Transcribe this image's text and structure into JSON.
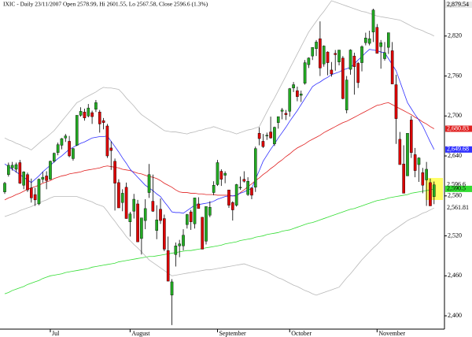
{
  "chart_data": {
    "type": "candlestick",
    "title": "IXIC - Daily 23/11/2007 Open 2578.99, Hi 2601.55, Lo 2567.58, Close 2596.6 (1.3%)",
    "categories": [
      null,
      null,
      null,
      null,
      null,
      null,
      null,
      null,
      null,
      null,
      null,
      null,
      "Jul",
      null,
      null,
      null,
      null,
      null,
      null,
      null,
      null,
      null,
      null,
      null,
      null,
      null,
      null,
      null,
      null,
      null,
      null,
      null,
      null,
      "August",
      null,
      null,
      null,
      null,
      null,
      null,
      null,
      null,
      null,
      null,
      null,
      null,
      null,
      null,
      null,
      null,
      null,
      null,
      null,
      null,
      null,
      null,
      "September",
      null,
      null,
      null,
      null,
      null,
      null,
      null,
      null,
      null,
      null,
      null,
      null,
      null,
      null,
      null,
      null,
      null,
      null,
      "October",
      null,
      null,
      null,
      null,
      null,
      null,
      null,
      null,
      null,
      null,
      null,
      null,
      null,
      null,
      null,
      null,
      null,
      null,
      null,
      null,
      null,
      null,
      "November",
      null,
      null,
      null,
      null,
      null,
      null,
      null,
      null,
      null,
      null,
      null,
      null,
      null,
      null,
      null
    ],
    "open": [
      2586,
      2612,
      2622,
      2620,
      2630,
      2596,
      2612,
      2592,
      2582,
      2568,
      2605,
      2610,
      2605,
      2632,
      2645,
      2656,
      2667,
      2662,
      2636,
      2656,
      2701,
      2706,
      2700,
      2705,
      2710,
      2706,
      2693,
      2685,
      2652,
      2632,
      2600,
      2570,
      2593,
      2541,
      2557,
      2568,
      2516,
      2543,
      2585,
      2572,
      2528,
      2560,
      2546,
      2498,
      2431,
      2492,
      2505,
      2505,
      2537,
      2556,
      2538,
      2568,
      2548,
      2512,
      2551,
      2585,
      2597,
      2617,
      2611,
      2589,
      2570,
      2566,
      2593,
      2605,
      2582,
      2592,
      2593,
      2674,
      2662,
      2670,
      2676,
      2658,
      2690,
      2707,
      2704,
      2707,
      2742,
      2738,
      2731,
      2749,
      2777,
      2790,
      2801,
      2816,
      2778,
      2796,
      2769,
      2794,
      2781,
      2787,
      2709,
      2770,
      2790,
      2779,
      2780,
      2810,
      2809,
      2826,
      2833,
      2804,
      2786,
      2803,
      2798,
      2747,
      2665,
      2628,
      2610,
      2694,
      2642,
      2627,
      2615,
      2604,
      2600,
      2578.99
    ],
    "high": [
      2601,
      2630,
      2631,
      2630,
      2634,
      2617,
      2615,
      2606,
      2592,
      2606,
      2616,
      2617,
      2633,
      2645,
      2660,
      2667,
      2673,
      2670,
      2652,
      2701,
      2713,
      2711,
      2718,
      2708,
      2724,
      2709,
      2697,
      2688,
      2662,
      2636,
      2605,
      2590,
      2600,
      2556,
      2583,
      2574,
      2547,
      2575,
      2628,
      2612,
      2566,
      2576,
      2552,
      2519,
      2455,
      2510,
      2514,
      2530,
      2553,
      2559,
      2577,
      2578,
      2548,
      2564,
      2572,
      2602,
      2634,
      2620,
      2617,
      2589,
      2572,
      2598,
      2609,
      2617,
      2608,
      2593,
      2654,
      2683,
      2673,
      2675,
      2699,
      2684,
      2697,
      2712,
      2709,
      2742,
      2751,
      2744,
      2738,
      2784,
      2788,
      2803,
      2814,
      2842,
      2806,
      2797,
      2781,
      2799,
      2799,
      2790,
      2760,
      2800,
      2795,
      2781,
      2806,
      2825,
      2828,
      2861,
      2838,
      2814,
      2811,
      2825,
      2811,
      2762,
      2676,
      2656,
      2674,
      2700,
      2652,
      2638,
      2622,
      2631,
      2606,
      2601.55
    ],
    "low": [
      2583,
      2609,
      2618,
      2615,
      2598,
      2590,
      2586,
      2570,
      2565,
      2566,
      2600,
      2590,
      2604,
      2630,
      2641,
      2650,
      2661,
      2638,
      2633,
      2655,
      2699,
      2693,
      2698,
      2688,
      2706,
      2675,
      2680,
      2637,
      2619,
      2558,
      2562,
      2557,
      2546,
      2519,
      2546,
      2511,
      2492,
      2530,
      2577,
      2556,
      2515,
      2538,
      2497,
      2452,
      2386,
      2474,
      2488,
      2498,
      2531,
      2529,
      2531,
      2561,
      2500,
      2507,
      2548,
      2581,
      2595,
      2595,
      2599,
      2562,
      2543,
      2564,
      2589,
      2600,
      2580,
      2575,
      2586,
      2656,
      2652,
      2664,
      2666,
      2655,
      2681,
      2695,
      2694,
      2699,
      2736,
      2722,
      2721,
      2747,
      2772,
      2784,
      2790,
      2760,
      2774,
      2761,
      2759,
      2768,
      2776,
      2725,
      2704,
      2762,
      2732,
      2742,
      2767,
      2806,
      2806,
      2811,
      2794,
      2771,
      2783,
      2793,
      2748,
      2658,
      2627,
      2584,
      2610,
      2637,
      2608,
      2601,
      2584,
      2565,
      2565,
      2567.58
    ],
    "close": [
      2599,
      2626,
      2626,
      2627,
      2599,
      2616,
      2589,
      2577,
      2574,
      2605,
      2608,
      2603,
      2632,
      2644,
      2657,
      2666,
      2670,
      2640,
      2651,
      2701,
      2707,
      2697,
      2712,
      2699,
      2720,
      2688,
      2690,
      2640,
      2648,
      2599,
      2562,
      2584,
      2546,
      2553,
      2575,
      2511,
      2547,
      2561,
      2612,
      2557,
      2544,
      2543,
      2500,
      2452,
      2451,
      2505,
      2508,
      2521,
      2552,
      2541,
      2577,
      2561,
      2500,
      2564,
      2563,
      2596,
      2630,
      2605,
      2614,
      2566,
      2559,
      2597,
      2593,
      2602,
      2602,
      2581,
      2651,
      2666,
      2654,
      2671,
      2667,
      2683,
      2699,
      2709,
      2702,
      2741,
      2747,
      2729,
      2733,
      2780,
      2787,
      2803,
      2811,
      2772,
      2805,
      2780,
      2763,
      2792,
      2799,
      2726,
      2754,
      2799,
      2774,
      2750,
      2804,
      2817,
      2816,
      2859,
      2794,
      2810,
      2795,
      2825,
      2748,
      2696,
      2627,
      2584,
      2674,
      2645,
      2618,
      2637,
      2596,
      2620,
      2565,
      2596.6
    ],
    "up_color": "#22aa22",
    "down_color": "#dd0000",
    "lines": [
      {
        "color": "#33dd33",
        "values": [
          2433,
          2435,
          2438,
          2440,
          2442,
          2444,
          2447,
          2449,
          2451,
          2453,
          2456,
          2458,
          2460,
          2461,
          2462,
          2463,
          2465,
          2466,
          2467,
          2468,
          2469,
          2470,
          2471,
          2473,
          2474,
          2475,
          2476,
          2477,
          2478,
          2479,
          2481,
          2482,
          2483,
          2484,
          2485,
          2486,
          2487,
          2488,
          2489,
          2489,
          2490,
          2491,
          2492,
          2493,
          2494,
          2495,
          2496,
          2497,
          2498,
          2498,
          2499,
          2500,
          2501,
          2502,
          2503,
          2504,
          2505,
          2506,
          2508,
          2509,
          2510,
          2511,
          2513,
          2514,
          2515,
          2516,
          2518,
          2519,
          2520,
          2522,
          2523,
          2524,
          2525,
          2527,
          2528,
          2529,
          2531,
          2533,
          2535,
          2537,
          2539,
          2540,
          2542,
          2544,
          2546,
          2548,
          2550,
          2552,
          2554,
          2556,
          2558,
          2560,
          2561,
          2563,
          2565,
          2567,
          2569,
          2571,
          2573,
          2574,
          2575,
          2577,
          2578,
          2579,
          2580,
          2581,
          2582,
          2584,
          2585,
          2586,
          2587,
          2588,
          2589,
          2590.5
        ]
      },
      {
        "color": "#e02020",
        "values": [
          2574,
          2577,
          2579,
          2582,
          2584,
          2587,
          2590,
          2592,
          2594,
          2596,
          2599,
          2601,
          2603,
          2606,
          2608,
          2610,
          2611,
          2613,
          2614,
          2615,
          2616,
          2618,
          2619,
          2620,
          2621,
          2622,
          2624,
          2625,
          2624,
          2623,
          2622,
          2620,
          2619,
          2618,
          2616,
          2614,
          2613,
          2611,
          2609,
          2608,
          2606,
          2603,
          2599,
          2596,
          2593,
          2589,
          2586,
          2585,
          2585,
          2584,
          2584,
          2583,
          2583,
          2582,
          2582,
          2582,
          2581,
          2581,
          2581,
          2581,
          2580,
          2580,
          2585,
          2589,
          2594,
          2598,
          2603,
          2607,
          2612,
          2616,
          2621,
          2625,
          2630,
          2634,
          2639,
          2643,
          2648,
          2652,
          2655,
          2658,
          2662,
          2665,
          2668,
          2671,
          2675,
          2678,
          2681,
          2684,
          2687,
          2690,
          2692,
          2695,
          2698,
          2701,
          2704,
          2707,
          2710,
          2713,
          2716,
          2717,
          2719,
          2720,
          2717,
          2714,
          2711,
          2708,
          2705,
          2702,
          2698,
          2695,
          2691,
          2688,
          2684,
          2680.83
        ]
      },
      {
        "color": "#3030ff",
        "values": [
          2628,
          2624,
          2620,
          2616,
          2612,
          2608,
          2604,
          2600,
          2605,
          2610,
          2616,
          2621,
          2626,
          2631,
          2636,
          2640,
          2645,
          2650,
          2653,
          2656,
          2659,
          2661,
          2664,
          2667,
          2668,
          2669,
          2669,
          2670,
          2662,
          2654,
          2646,
          2637,
          2629,
          2620,
          2614,
          2608,
          2602,
          2596,
          2592,
          2588,
          2583,
          2579,
          2571,
          2564,
          2556,
          2555,
          2555,
          2554,
          2558,
          2562,
          2566,
          2567,
          2568,
          2569,
          2570,
          2572,
          2575,
          2577,
          2579,
          2580,
          2580,
          2581,
          2584,
          2586,
          2589,
          2591,
          2605,
          2618,
          2632,
          2641,
          2650,
          2658,
          2667,
          2675,
          2683,
          2692,
          2700,
          2708,
          2717,
          2726,
          2735,
          2744,
          2748,
          2751,
          2755,
          2758,
          2762,
          2764,
          2766,
          2769,
          2771,
          2773,
          2778,
          2784,
          2789,
          2795,
          2800,
          2799,
          2798,
          2796,
          2795,
          2786,
          2777,
          2768,
          2752,
          2736,
          2720,
          2711,
          2702,
          2694,
          2685,
          2673,
          2661,
          2649.68
        ]
      },
      {
        "color": "#b8b8b8",
        "values": [
          2667,
          2664,
          2662,
          2659,
          2657,
          2654,
          2652,
          2649,
          2654,
          2659,
          2664,
          2668,
          2673,
          2678,
          2685,
          2692,
          2699,
          2706,
          2713,
          2720,
          2723,
          2727,
          2730,
          2733,
          2736,
          2740,
          2743,
          2742,
          2742,
          2741,
          2740,
          2734,
          2727,
          2721,
          2715,
          2708,
          2702,
          2698,
          2694,
          2690,
          2686,
          2682,
          2678,
          2677,
          2676,
          2676,
          2675,
          2674,
          2673,
          2675,
          2676,
          2678,
          2679,
          2681,
          2682,
          2684,
          2682,
          2680,
          2678,
          2677,
          2675,
          2673,
          2675,
          2677,
          2679,
          2680,
          2682,
          2684,
          2695,
          2706,
          2717,
          2727,
          2738,
          2749,
          2760,
          2771,
          2782,
          2793,
          2804,
          2815,
          2826,
          2834,
          2842,
          2850,
          2857,
          2865,
          2873,
          2871,
          2869,
          2867,
          2865,
          2863,
          2861,
          2859,
          2857,
          2856,
          2854,
          2852,
          2850,
          2849,
          2848,
          2847,
          2846,
          2845,
          2844,
          2841,
          2838,
          2835,
          2832,
          2830,
          2828,
          2825,
          2823,
          2820
        ]
      },
      {
        "color": "#b8b8b8",
        "values": [
          2549,
          2551,
          2553,
          2555,
          2558,
          2560,
          2562,
          2564,
          2567,
          2569,
          2572,
          2574,
          2577,
          2579,
          2579,
          2579,
          2579,
          2579,
          2579,
          2579,
          2577,
          2575,
          2573,
          2571,
          2568,
          2566,
          2564,
          2557,
          2549,
          2542,
          2534,
          2527,
          2519,
          2513,
          2507,
          2502,
          2496,
          2490,
          2484,
          2480,
          2476,
          2472,
          2468,
          2464,
          2460,
          2461,
          2462,
          2463,
          2464,
          2465,
          2466,
          2467,
          2468,
          2469,
          2469,
          2470,
          2471,
          2472,
          2473,
          2474,
          2475,
          2476,
          2477,
          2478,
          2476,
          2474,
          2472,
          2470,
          2468,
          2466,
          2463,
          2460,
          2457,
          2455,
          2452,
          2449,
          2446,
          2444,
          2441,
          2438,
          2436,
          2433,
          2431,
          2433,
          2435,
          2437,
          2439,
          2441,
          2443,
          2450,
          2457,
          2463,
          2470,
          2477,
          2484,
          2490,
          2496,
          2502,
          2507,
          2513,
          2519,
          2523,
          2527,
          2531,
          2535,
          2539,
          2543,
          2546,
          2548,
          2551,
          2554,
          2556,
          2559,
          2561.81
        ]
      }
    ],
    "ylim": [
      2380,
      2880
    ],
    "yticks": [
      {
        "value": 2400,
        "label": "2,400"
      },
      {
        "value": 2460,
        "label": "2,460"
      },
      {
        "value": 2520,
        "label": "2,520"
      },
      {
        "value": 2580,
        "label": "2,580"
      },
      {
        "value": 2640,
        "label": "2,640"
      },
      {
        "value": 2700,
        "label": "2,700"
      },
      {
        "value": 2760,
        "label": "2,760"
      },
      {
        "value": 2820,
        "label": "2,820"
      }
    ],
    "y_markers": [
      {
        "value": 2879.54,
        "label": "2,879.54",
        "color": "#e8e8e8"
      },
      {
        "value": 2680.83,
        "label": "2,680.83",
        "color": "#e02020"
      },
      {
        "value": 2649.68,
        "label": "2,649.68",
        "color": "#3030ff"
      },
      {
        "value": 2596.6,
        "label": "2,596.6",
        "color": "#ffffff"
      },
      {
        "value": 2590.5,
        "label": "2,590.5",
        "color": "#33dd33"
      },
      {
        "value": 2561.81,
        "label": "2,561.81",
        "color": "#ffffff"
      }
    ]
  }
}
